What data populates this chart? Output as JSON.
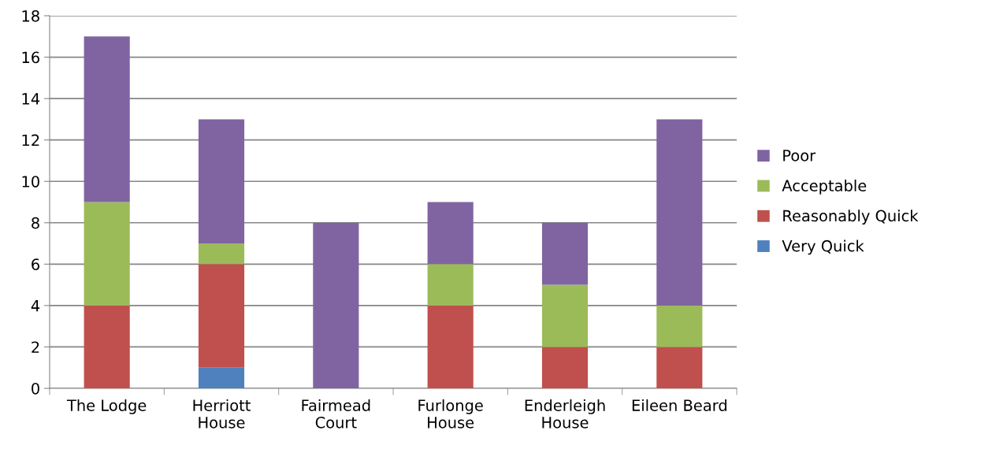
{
  "chart_data": {
    "type": "bar",
    "stacked": true,
    "categories": [
      "The Lodge",
      "Herriott\nHouse",
      "Fairmead\nCourt",
      "Furlonge\nHouse",
      "Enderleigh\nHouse",
      "Eileen Beard"
    ],
    "series": [
      {
        "name": "Very Quick",
        "color": "#4f81bd",
        "values": [
          0,
          1,
          0,
          0,
          0,
          0
        ]
      },
      {
        "name": "Reasonably Quick",
        "color": "#c0504d",
        "values": [
          4,
          5,
          0,
          4,
          2,
          2
        ]
      },
      {
        "name": "Acceptable",
        "color": "#9bbb59",
        "values": [
          5,
          1,
          0,
          2,
          3,
          2
        ]
      },
      {
        "name": "Poor",
        "color": "#8064a2",
        "values": [
          8,
          6,
          8,
          3,
          3,
          9
        ]
      }
    ],
    "ylim": [
      0,
      18
    ],
    "yticks": [
      0,
      2,
      4,
      6,
      8,
      10,
      12,
      14,
      16,
      18
    ],
    "grid": "y",
    "legend": "right"
  }
}
